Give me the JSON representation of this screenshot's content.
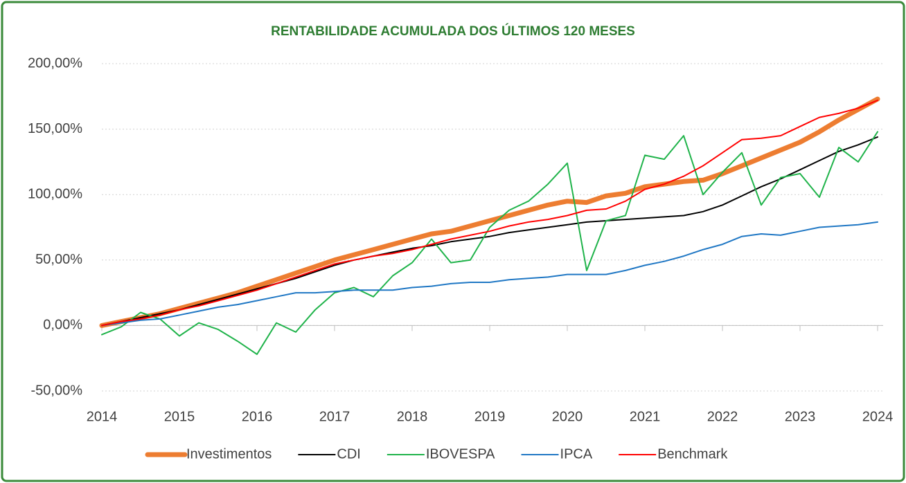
{
  "chart_data": {
    "type": "line",
    "title": "RENTABILIDADE ACUMULADA DOS ÚLTIMOS 120 MESES",
    "x": [
      2014,
      2014.25,
      2014.5,
      2014.75,
      2015,
      2015.25,
      2015.5,
      2015.75,
      2016,
      2016.25,
      2016.5,
      2016.75,
      2017,
      2017.25,
      2017.5,
      2017.75,
      2018,
      2018.25,
      2018.5,
      2018.75,
      2019,
      2019.25,
      2019.5,
      2019.75,
      2020,
      2020.25,
      2020.5,
      2020.75,
      2021,
      2021.25,
      2021.5,
      2021.75,
      2022,
      2022.25,
      2022.5,
      2022.75,
      2023,
      2023.25,
      2023.5,
      2023.75,
      2024
    ],
    "series": [
      {
        "name": "Investimentos",
        "color": "#ed7d31",
        "values": [
          0,
          3,
          6,
          9,
          13,
          17,
          21,
          25,
          30,
          35,
          40,
          45,
          50,
          54,
          58,
          62,
          66,
          70,
          72,
          76,
          80,
          84,
          88,
          92,
          95,
          94,
          99,
          101,
          106,
          108,
          110,
          111,
          116,
          122,
          128,
          134,
          140,
          148,
          157,
          165,
          173
        ]
      },
      {
        "name": "CDI",
        "color": "#000000",
        "values": [
          0,
          3,
          6,
          9,
          12,
          16,
          20,
          24,
          28,
          32,
          36,
          41,
          46,
          50,
          53,
          56,
          59,
          61,
          64,
          66,
          68,
          71,
          73,
          75,
          77,
          79,
          80,
          81,
          82,
          83,
          84,
          87,
          92,
          99,
          106,
          112,
          119,
          126,
          133,
          138,
          144
        ]
      },
      {
        "name": "IBOVESPA",
        "color": "#1fb34a",
        "values": [
          -7,
          -1,
          10,
          5,
          -8,
          2,
          -3,
          -12,
          -22,
          2,
          -5,
          12,
          25,
          29,
          22,
          38,
          48,
          66,
          48,
          50,
          75,
          88,
          95,
          108,
          124,
          42,
          80,
          84,
          130,
          127,
          145,
          100,
          117,
          132,
          92,
          113,
          116,
          98,
          136,
          125,
          148
        ]
      },
      {
        "name": "IPCA",
        "color": "#1f77c4",
        "values": [
          0,
          2,
          4,
          5,
          8,
          11,
          14,
          16,
          19,
          22,
          25,
          25,
          26,
          27,
          27,
          27,
          29,
          30,
          32,
          33,
          33,
          35,
          36,
          37,
          39,
          39,
          39,
          42,
          46,
          49,
          53,
          58,
          62,
          68,
          70,
          69,
          72,
          75,
          76,
          77,
          79
        ]
      },
      {
        "name": "Benchmark",
        "color": "#ff0000",
        "values": [
          0,
          3,
          5,
          8,
          12,
          15,
          19,
          23,
          27,
          32,
          37,
          42,
          47,
          50,
          53,
          55,
          58,
          62,
          66,
          69,
          72,
          76,
          79,
          81,
          84,
          88,
          89,
          95,
          104,
          108,
          114,
          122,
          132,
          142,
          143,
          145,
          152,
          159,
          162,
          166,
          172
        ]
      }
    ],
    "xlim": [
      2014,
      2024
    ],
    "xticks": [
      2014,
      2015,
      2016,
      2017,
      2018,
      2019,
      2020,
      2021,
      2022,
      2023,
      2024
    ],
    "ylim": [
      -50,
      200
    ],
    "yticks": [
      {
        "value": -50,
        "label": "-50,00%"
      },
      {
        "value": 0,
        "label": "0,00%"
      },
      {
        "value": 50,
        "label": "50,00%"
      },
      {
        "value": 100,
        "label": "100,00%"
      },
      {
        "value": 150,
        "label": "150,00%"
      },
      {
        "value": 200,
        "label": "200,00%"
      }
    ],
    "grid": true,
    "legend": "bottom"
  }
}
